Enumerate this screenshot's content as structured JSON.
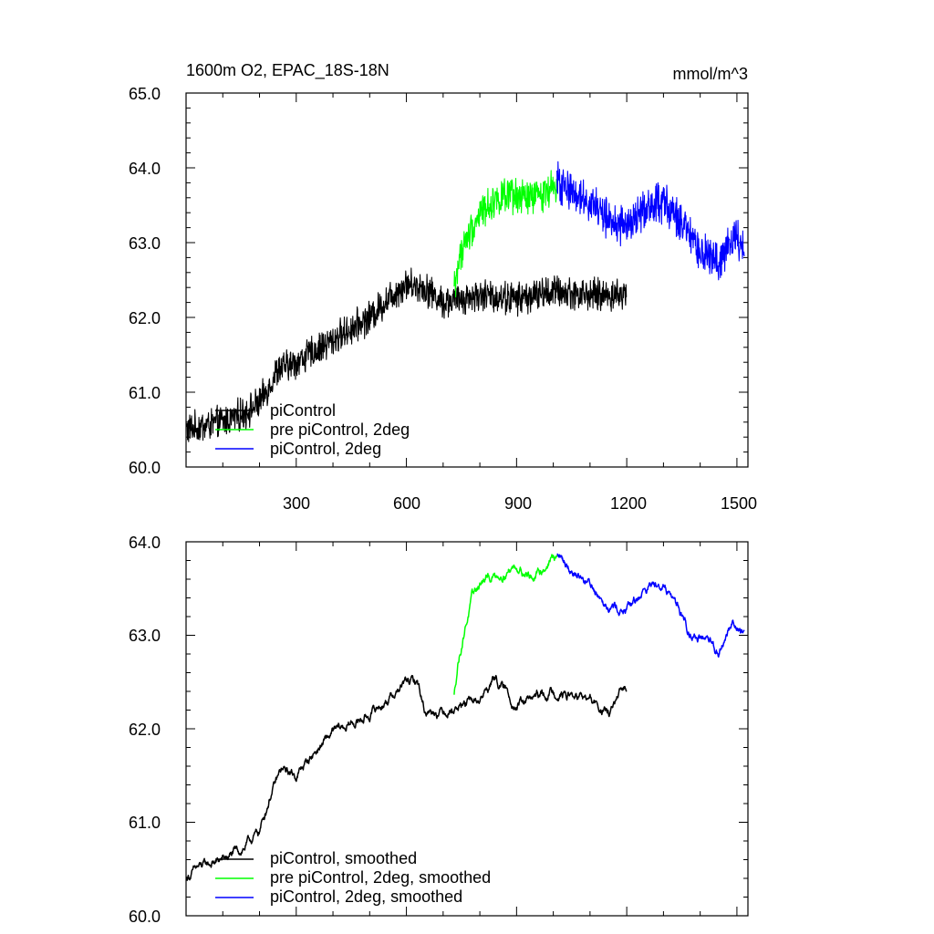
{
  "chart_data": [
    {
      "type": "line",
      "title": "1600m O2, EPAC_18S-18N",
      "units": "mmol/m^3",
      "xlabel": "",
      "ylabel": "",
      "xlim": [
        0,
        1530
      ],
      "ylim": [
        60.0,
        65.0
      ],
      "xticks": [
        300,
        600,
        900,
        1200,
        1500
      ],
      "xtick_labels": [
        "300",
        "600",
        "900",
        "1200",
        "1500"
      ],
      "yticks": [
        60.0,
        61.0,
        62.0,
        63.0,
        64.0,
        65.0
      ],
      "ytick_labels": [
        "60.0",
        "61.0",
        "62.0",
        "63.0",
        "64.0",
        "65.0"
      ],
      "legend": [
        "piControl",
        "pre piControl, 2deg",
        "piControl, 2deg"
      ],
      "legend_position": "bottom-left",
      "series": [
        {
          "name": "piControl",
          "color": "#000000",
          "x_range": [
            1,
            1200
          ],
          "noise": 0.18,
          "trend_x": [
            0,
            100,
            150,
            200,
            250,
            300,
            400,
            500,
            560,
            600,
            650,
            700,
            800,
            900,
            1000,
            1100,
            1200
          ],
          "trend_y": [
            60.5,
            60.6,
            60.7,
            60.85,
            61.3,
            61.4,
            61.7,
            62.0,
            62.3,
            62.45,
            62.4,
            62.2,
            62.3,
            62.25,
            62.35,
            62.3,
            62.3
          ]
        },
        {
          "name": "pre piControl, 2deg",
          "color": "#00ff00",
          "x_range": [
            730,
            1010
          ],
          "noise": 0.2,
          "trend_x": [
            730,
            750,
            770,
            800,
            850,
            900,
            950,
            1000,
            1010
          ],
          "trend_y": [
            62.4,
            62.9,
            63.1,
            63.4,
            63.6,
            63.6,
            63.6,
            63.75,
            63.8
          ]
        },
        {
          "name": "piControl, 2deg",
          "color": "#0000ff",
          "x_range": [
            1010,
            1520
          ],
          "noise": 0.22,
          "trend_x": [
            1010,
            1050,
            1100,
            1150,
            1200,
            1250,
            1300,
            1350,
            1400,
            1450,
            1490,
            1520
          ],
          "trend_y": [
            63.8,
            63.7,
            63.55,
            63.3,
            63.2,
            63.45,
            63.55,
            63.25,
            62.85,
            62.75,
            63.05,
            63.0
          ]
        }
      ]
    },
    {
      "type": "line",
      "title": "",
      "xlim": [
        0,
        1530
      ],
      "ylim": [
        60.0,
        64.0
      ],
      "xticks": [
        300,
        600,
        900,
        1200,
        1500
      ],
      "yticks": [
        60.0,
        61.0,
        62.0,
        63.0,
        64.0
      ],
      "ytick_labels": [
        "60.0",
        "61.0",
        "62.0",
        "63.0",
        "64.0"
      ],
      "legend": [
        "piControl, smoothed",
        "pre piControl, 2deg, smoothed",
        "piControl, 2deg, smoothed"
      ],
      "legend_position": "bottom-left",
      "series": [
        {
          "name": "piControl, smoothed",
          "color": "#000000",
          "x_range": [
            1,
            1200
          ],
          "noise": 0.06,
          "trend_x": [
            0,
            30,
            100,
            150,
            200,
            230,
            260,
            300,
            350,
            400,
            450,
            500,
            560,
            600,
            630,
            650,
            700,
            800,
            840,
            900,
            1000,
            1100,
            1150,
            1200
          ],
          "trend_y": [
            60.4,
            60.5,
            60.6,
            60.7,
            60.9,
            61.3,
            61.55,
            61.5,
            61.75,
            61.95,
            62.05,
            62.15,
            62.35,
            62.5,
            62.5,
            62.2,
            62.2,
            62.3,
            62.55,
            62.25,
            62.4,
            62.3,
            62.15,
            62.45
          ]
        },
        {
          "name": "pre piControl, 2deg, smoothed",
          "color": "#00ff00",
          "x_range": [
            730,
            1010
          ],
          "noise": 0.06,
          "trend_x": [
            730,
            740,
            760,
            780,
            800,
            850,
            900,
            950,
            1000,
            1010
          ],
          "trend_y": [
            62.35,
            62.7,
            63.1,
            63.4,
            63.55,
            63.65,
            63.75,
            63.6,
            63.85,
            63.8
          ]
        },
        {
          "name": "piControl, 2deg, smoothed",
          "color": "#0000ff",
          "x_range": [
            1010,
            1520
          ],
          "noise": 0.06,
          "trend_x": [
            1010,
            1040,
            1100,
            1150,
            1200,
            1250,
            1290,
            1330,
            1370,
            1420,
            1450,
            1490,
            1520
          ],
          "trend_y": [
            63.85,
            63.75,
            63.55,
            63.35,
            63.25,
            63.5,
            63.6,
            63.4,
            63.05,
            62.9,
            62.8,
            63.15,
            63.0
          ]
        }
      ]
    }
  ]
}
